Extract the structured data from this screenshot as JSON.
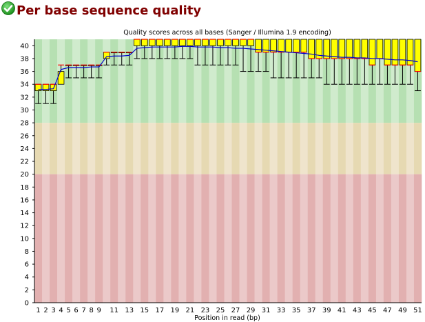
{
  "header": {
    "title": "Per base sequence quality",
    "status_icon": "check-icon",
    "status_color": "#22aa22"
  },
  "chart_data": {
    "type": "box",
    "title": "Quality scores across all bases (Sanger / Illumina 1.9 encoding)",
    "xlabel": "Position in read (bp)",
    "ylabel": "",
    "ylim": [
      0,
      41
    ],
    "yticks": [
      0,
      2,
      4,
      6,
      8,
      10,
      12,
      14,
      16,
      18,
      20,
      22,
      24,
      26,
      28,
      30,
      32,
      34,
      36,
      38,
      40
    ],
    "x": [
      1,
      2,
      3,
      4,
      5,
      6,
      7,
      8,
      9,
      10,
      11,
      12,
      13,
      14,
      15,
      16,
      17,
      18,
      19,
      20,
      21,
      22,
      23,
      24,
      25,
      26,
      27,
      28,
      29,
      30,
      31,
      32,
      33,
      34,
      35,
      36,
      37,
      38,
      39,
      40,
      41,
      42,
      43,
      44,
      45,
      46,
      47,
      48,
      49,
      50,
      51
    ],
    "x_tick_labels": [
      "1",
      "2",
      "3",
      "4",
      "5",
      "6",
      "7",
      "8",
      "9",
      "11",
      "13",
      "15",
      "17",
      "19",
      "21",
      "23",
      "25",
      "27",
      "29",
      "31",
      "33",
      "35",
      "37",
      "39",
      "41",
      "43",
      "45",
      "47",
      "49",
      "51"
    ],
    "zones": [
      {
        "from": 28,
        "to": 41,
        "color": "good"
      },
      {
        "from": 20,
        "to": 28,
        "color": "reasonable"
      },
      {
        "from": 0,
        "to": 20,
        "color": "poor"
      }
    ],
    "colors": {
      "box": "#ffff00",
      "median": "#ff0000",
      "mean_line": "#0000cc",
      "whisker": "#000000",
      "good_a": "#b6e0b2",
      "good_b": "#d0ebcd",
      "reasonable_a": "#e6d9b2",
      "reasonable_b": "#efe4cc",
      "poor_a": "#e2b0b0",
      "poor_b": "#ebc9c9"
    },
    "series": [
      {
        "name": "box",
        "q1": [
          33,
          33,
          33,
          34,
          37,
          37,
          37,
          37,
          37,
          38,
          39,
          39,
          39,
          41,
          41,
          41,
          41,
          41,
          41,
          41,
          41,
          41,
          41,
          41,
          41,
          41,
          41,
          41,
          41,
          39,
          39,
          39,
          39,
          39,
          39,
          39,
          38,
          38,
          38,
          38,
          38,
          38,
          38,
          38,
          37,
          38,
          37,
          37,
          37,
          37,
          36
        ],
        "q3": [
          34,
          34,
          34,
          36,
          37,
          37,
          37,
          37,
          37,
          39,
          39,
          39,
          39,
          40,
          40,
          40,
          40,
          40,
          40,
          40,
          40,
          40,
          40,
          40,
          40,
          40,
          40,
          40,
          40,
          41,
          41,
          41,
          41,
          41,
          41,
          41,
          41,
          41,
          41,
          41,
          41,
          41,
          41,
          41,
          41,
          41,
          41,
          41,
          41,
          41,
          41
        ],
        "median": [
          34,
          34,
          34,
          37,
          37,
          37,
          37,
          37,
          37,
          39,
          39,
          39,
          39,
          41,
          41,
          41,
          41,
          41,
          41,
          41,
          41,
          41,
          41,
          41,
          41,
          41,
          41,
          41,
          41,
          39,
          39,
          39,
          39,
          39,
          39,
          39,
          38,
          38,
          38,
          38,
          38,
          38,
          38,
          38,
          37,
          38,
          37,
          37,
          37,
          37,
          36
        ],
        "lower_whisker": [
          31,
          31,
          31,
          35,
          35,
          35,
          35,
          35,
          35,
          37,
          37,
          37,
          37,
          38,
          38,
          38,
          38,
          38,
          38,
          38,
          38,
          37,
          37,
          37,
          37,
          37,
          37,
          36,
          36,
          36,
          36,
          35,
          35,
          35,
          35,
          35,
          35,
          35,
          34,
          34,
          34,
          34,
          34,
          34,
          34,
          34,
          34,
          34,
          34,
          34,
          33
        ],
        "upper_whisker": [
          34,
          34,
          34,
          37,
          37,
          37,
          37,
          37,
          37,
          39,
          39,
          39,
          39,
          41,
          41,
          41,
          41,
          41,
          41,
          41,
          41,
          41,
          41,
          41,
          41,
          41,
          41,
          41,
          41,
          41,
          41,
          41,
          41,
          41,
          41,
          41,
          41,
          41,
          41,
          41,
          41,
          41,
          41,
          41,
          41,
          41,
          41,
          41,
          41,
          41,
          41
        ]
      },
      {
        "name": "mean",
        "values": [
          33.2,
          33.2,
          33.3,
          36.3,
          36.6,
          36.6,
          36.6,
          36.7,
          36.7,
          38.3,
          38.4,
          38.4,
          38.5,
          39.6,
          39.7,
          39.8,
          39.8,
          39.8,
          39.8,
          39.9,
          39.9,
          39.8,
          39.8,
          39.8,
          39.7,
          39.7,
          39.6,
          39.6,
          39.5,
          39.4,
          39.3,
          39.2,
          39.1,
          39.0,
          38.9,
          38.8,
          38.7,
          38.5,
          38.4,
          38.3,
          38.2,
          38.2,
          38.1,
          38.1,
          38.0,
          38.0,
          37.9,
          37.8,
          37.8,
          37.7,
          37.5
        ]
      }
    ]
  }
}
